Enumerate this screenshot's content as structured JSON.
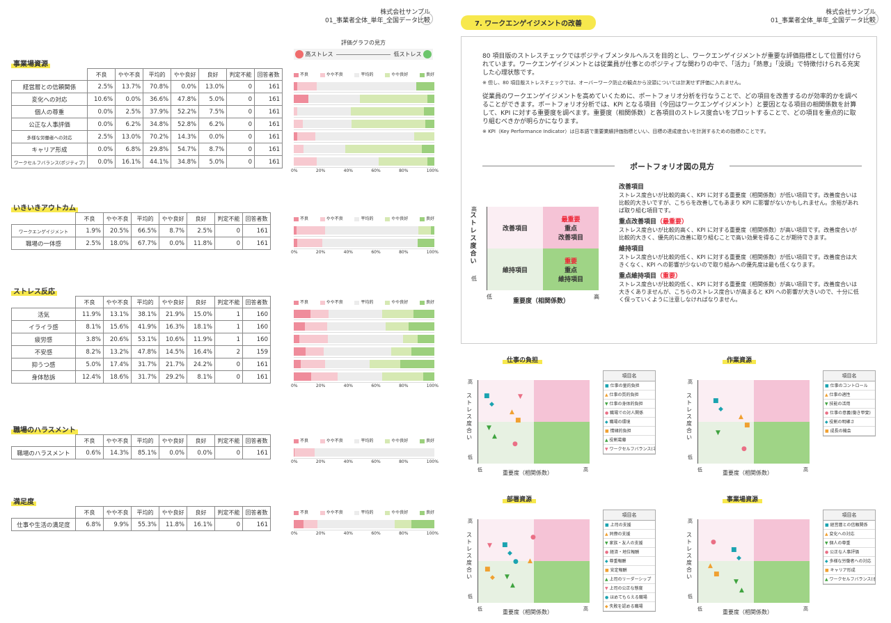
{
  "left": {
    "company": "株式会社サンプル",
    "subtitle": "01_事業者全体_単年_全国データ比較",
    "page": "07",
    "legend_title": "評価グラフの見方",
    "legend_high": "高ストレス",
    "legend_low": "低ストレス",
    "headers": [
      "不良",
      "やや不良",
      "平均的",
      "やや良好",
      "良好",
      "判定不能",
      "回答者数"
    ],
    "bar_legend": [
      "不良",
      "やや不良",
      "平均的",
      "やや良好",
      "良好"
    ],
    "axis": [
      "0%",
      "20%",
      "40%",
      "60%",
      "80%",
      "100%"
    ],
    "sections": [
      {
        "title": "事業場資源",
        "rows": [
          {
            "name": "経営層との信頼関係",
            "v": [
              "2.5%",
              "13.7%",
              "70.8%",
              "0.0%",
              "13.0%",
              "0",
              "161"
            ],
            "b": [
              2.5,
              13.7,
              70.8,
              0,
              13
            ]
          },
          {
            "name": "変化への対応",
            "v": [
              "10.6%",
              "0.0%",
              "36.6%",
              "47.8%",
              "5.0%",
              "0",
              "161"
            ],
            "b": [
              10.6,
              0,
              36.6,
              47.8,
              5
            ]
          },
          {
            "name": "個人の尊重",
            "v": [
              "0.0%",
              "2.5%",
              "37.9%",
              "52.2%",
              "7.5%",
              "0",
              "161"
            ],
            "b": [
              0,
              2.5,
              37.9,
              52.2,
              7.5
            ]
          },
          {
            "name": "公正な人事評価",
            "v": [
              "0.0%",
              "6.2%",
              "34.8%",
              "52.8%",
              "6.2%",
              "0",
              "161"
            ],
            "b": [
              0,
              6.2,
              34.8,
              52.8,
              6.2
            ]
          },
          {
            "name": "多様な労働者への対応",
            "v": [
              "2.5%",
              "13.0%",
              "70.2%",
              "14.3%",
              "0.0%",
              "0",
              "161"
            ],
            "b": [
              2.5,
              13,
              70.2,
              14.3,
              0
            ]
          },
          {
            "name": "キャリア形成",
            "v": [
              "0.0%",
              "6.8%",
              "29.8%",
              "54.7%",
              "8.7%",
              "0",
              "161"
            ],
            "b": [
              0,
              6.8,
              29.8,
              54.7,
              8.7
            ]
          },
          {
            "name": "ワークセルフバランス(ポジティブ)",
            "v": [
              "0.0%",
              "16.1%",
              "44.1%",
              "34.8%",
              "5.0%",
              "0",
              "161"
            ],
            "b": [
              0,
              16.1,
              44.1,
              34.8,
              5
            ]
          }
        ]
      },
      {
        "title": "いきいきアウトカム",
        "rows": [
          {
            "name": "ワークエンゲイジメント",
            "v": [
              "1.9%",
              "20.5%",
              "66.5%",
              "8.7%",
              "2.5%",
              "0",
              "161"
            ],
            "b": [
              1.9,
              20.5,
              66.5,
              8.7,
              2.5
            ]
          },
          {
            "name": "職場の一体感",
            "v": [
              "2.5%",
              "18.0%",
              "67.7%",
              "0.0%",
              "11.8%",
              "0",
              "161"
            ],
            "b": [
              2.5,
              18,
              67.7,
              0,
              11.8
            ]
          }
        ]
      },
      {
        "title": "ストレス反応",
        "rows": [
          {
            "name": "活気",
            "v": [
              "11.9%",
              "13.1%",
              "38.1%",
              "21.9%",
              "15.0%",
              "1",
              "160"
            ],
            "b": [
              11.9,
              13.1,
              38.1,
              21.9,
              15
            ]
          },
          {
            "name": "イライラ感",
            "v": [
              "8.1%",
              "15.6%",
              "41.9%",
              "16.3%",
              "18.1%",
              "1",
              "160"
            ],
            "b": [
              8.1,
              15.6,
              41.9,
              16.3,
              18.1
            ]
          },
          {
            "name": "疲労感",
            "v": [
              "3.8%",
              "20.6%",
              "53.1%",
              "10.6%",
              "11.9%",
              "1",
              "160"
            ],
            "b": [
              3.8,
              20.6,
              53.1,
              10.6,
              11.9
            ]
          },
          {
            "name": "不安感",
            "v": [
              "8.2%",
              "13.2%",
              "47.8%",
              "14.5%",
              "16.4%",
              "2",
              "159"
            ],
            "b": [
              8.2,
              13.2,
              47.8,
              14.5,
              16.4
            ]
          },
          {
            "name": "抑うつ感",
            "v": [
              "5.0%",
              "17.4%",
              "31.7%",
              "21.7%",
              "24.2%",
              "0",
              "161"
            ],
            "b": [
              5,
              17.4,
              31.7,
              21.7,
              24.2
            ]
          },
          {
            "name": "身体愁訴",
            "v": [
              "12.4%",
              "18.6%",
              "31.7%",
              "29.2%",
              "8.1%",
              "0",
              "161"
            ],
            "b": [
              12.4,
              18.6,
              31.7,
              29.2,
              8.1
            ]
          }
        ]
      },
      {
        "title": "職場のハラスメント",
        "rows": [
          {
            "name": "職場のハラスメント",
            "v": [
              "0.6%",
              "14.3%",
              "85.1%",
              "0.0%",
              "0.0%",
              "0",
              "161"
            ],
            "b": [
              0.6,
              14.3,
              85.1,
              0,
              0
            ]
          }
        ]
      },
      {
        "title": "満足度",
        "rows": [
          {
            "name": "仕事や生活の満足度",
            "v": [
              "6.8%",
              "9.9%",
              "55.3%",
              "11.8%",
              "16.1%",
              "0",
              "161"
            ],
            "b": [
              6.8,
              9.9,
              55.3,
              11.8,
              16.1
            ]
          }
        ]
      }
    ]
  },
  "right": {
    "company": "株式会社サンプル",
    "subtitle": "01_事業者全体_単年_全国データ比較",
    "page": "08",
    "title": "7. ワークエンゲイジメントの改善",
    "p1": "80 項目版のストレスチェックではポジティブメンタルヘルスを目的とし、ワークエンゲイジメントが重要な評価指標として位置付けられています。ワークエンゲイジメントとは従業員が仕事とのポジティブな関わりの中で、「活力」「熱意」「没頭」で特徴付けられる充実した心理状態です。",
    "n1": "※ 但し、80 項目版ストレスチェックでは、オーバーワーク防止の観点から没頭については計測せず評価に入れません。",
    "p2": "従業員のワークエンゲイジメントを高めていくために、ポートフォリオ分析を行なうことで、どの項目を改善するのが効率的かを調べることができます。ポートフォリオ分析では、KPI となる項目（今回はワークエンゲイジメント）と要因となる項目の相関係数を計算して、KPI に対する重要度を調べます。重要度（相関係数）と各項目のストレス度合いをプロットすることで、どの項目を重点的に取り組むべきかが明らかになります。",
    "n2": "※ KPI（Key Performance Indicator）は日本語で重要業績評価指標といい、目標の達成度合いを計測するための指標のことです。",
    "how": "ポートフォリオ図の見方",
    "q": {
      "tl": "改善項目",
      "tr1": "最重要",
      "tr2": "重点",
      "tr3": "改善項目",
      "bl": "維持項目",
      "br1": "重要",
      "br2": "重点",
      "br3": "維持項目",
      "y": "ストレス度合い",
      "x": "重要度（相関係数）",
      "hi": "高",
      "lo": "低"
    },
    "d": [
      {
        "h": "改善項目",
        "t": "ストレス度合いが比較的高く、KPI に対する重要度（相関係数）が低い項目です。改善度合いは比較的大きいですが、こちらを改善してもあまり KPI に影響がないかもしれません。余裕があれば取り組む項目です。"
      },
      {
        "h": "重点改善項目",
        "r": "（最重要）",
        "t": "ストレス度合いが比較的高く、KPI に対する重要度（相関係数）が高い項目です。改善度合いが比較的大きく、優先的に改善に取り組むことで高い効果を得ることが期待できます。"
      },
      {
        "h": "維持項目",
        "t": "ストレス度合いが比較的低く、KPI に対する重要度（相関係数）が低い項目です。改善度合は大きくなく、KPI への影響が少ないので取り組みへの優先度は最も低くなります。"
      },
      {
        "h": "重点維持項目",
        "r": "（重要）",
        "t": "ストレス度合いが比較的低く、KPI に対する重要度（相関係数）が高い項目です。改善度合いは大きくありませんが、こちらのストレス度合いが高まると KPI への影響が大きいので、十分に低く保っていくように注意しなければなりません。"
      }
    ],
    "charts": [
      {
        "title": "仕事の負担",
        "legend": [
          "仕事の量的負担",
          "仕事の質的負担",
          "仕事の身体的負担",
          "職場での対人関係",
          "職場の環境",
          "情緒的負担",
          "役割葛藤",
          "ワークセルフバランス(ネガティブ)"
        ]
      },
      {
        "title": "作業資源",
        "legend": [
          "仕事のコントロール",
          "仕事の適性",
          "技能の活用",
          "仕事の意義(働き甲斐)",
          "役割の明確さ",
          "成長の機会"
        ]
      },
      {
        "title": "部署資源",
        "legend": [
          "上司の支援",
          "同僚の支援",
          "家族・友人の支援",
          "経済・地位報酬",
          "尊重報酬",
          "安定報酬",
          "上司のリーダーシップ",
          "上司の公正な態度",
          "ほめてもらえる職場",
          "失敗を認める職場"
        ]
      },
      {
        "title": "事業場資源",
        "legend": [
          "経営層との信頼関係",
          "変化への対応",
          "個人の尊重",
          "公正な人事評価",
          "多様な労働者への対応",
          "キャリア形成",
          "ワークセルフバランス(ポジティブ)"
        ]
      }
    ],
    "chart_label": "項目名"
  }
}
